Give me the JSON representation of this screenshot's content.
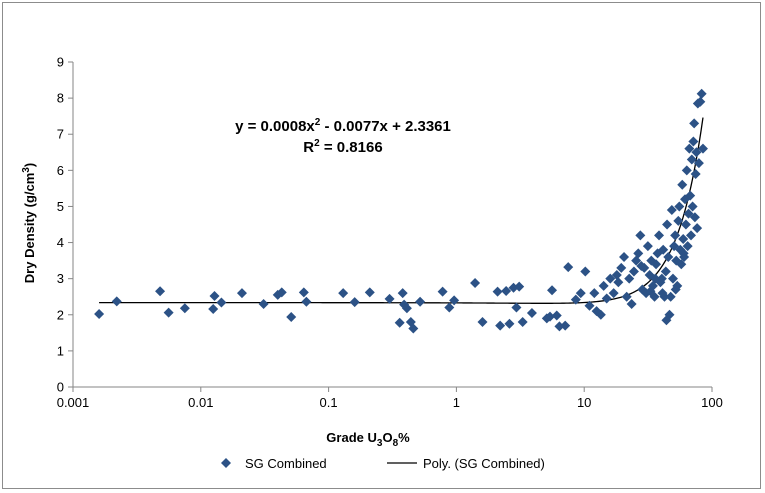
{
  "chart_data": {
    "type": "scatter",
    "title": "",
    "xlabel": "Grade U3O8%",
    "xlabel_parts": {
      "pre": "Grade U",
      "sub1": "3",
      "mid": "O",
      "sub2": "8",
      "post": "%"
    },
    "ylabel": "Dry Density (g/cm3)",
    "ylabel_parts": {
      "pre": "Dry Density (g/cm",
      "sup": "3",
      "post": ")"
    },
    "x_scale": "log",
    "xlim": [
      0.001,
      100
    ],
    "ylim": [
      0,
      9
    ],
    "x_ticks": [
      "0.001",
      "0.01",
      "0.1",
      "1",
      "10",
      "100"
    ],
    "y_ticks": [
      "0",
      "1",
      "2",
      "3",
      "4",
      "5",
      "6",
      "7",
      "8",
      "9"
    ],
    "grid": "none",
    "legend_position": "bottom",
    "marker_color": "#2c5286",
    "line_color": "#000000",
    "series": [
      {
        "name": "SG Combined",
        "points": [
          [
            0.0016,
            2.02
          ],
          [
            0.0022,
            2.37
          ],
          [
            0.0048,
            2.65
          ],
          [
            0.0056,
            2.06
          ],
          [
            0.0075,
            2.18
          ],
          [
            0.0125,
            2.16
          ],
          [
            0.0128,
            2.52
          ],
          [
            0.0145,
            2.34
          ],
          [
            0.021,
            2.6
          ],
          [
            0.031,
            2.3
          ],
          [
            0.04,
            2.55
          ],
          [
            0.043,
            2.62
          ],
          [
            0.051,
            1.94
          ],
          [
            0.064,
            2.62
          ],
          [
            0.067,
            2.36
          ],
          [
            0.13,
            2.6
          ],
          [
            0.16,
            2.35
          ],
          [
            0.21,
            2.62
          ],
          [
            0.3,
            2.44
          ],
          [
            0.36,
            1.78
          ],
          [
            0.38,
            2.6
          ],
          [
            0.39,
            2.28
          ],
          [
            0.41,
            2.18
          ],
          [
            0.44,
            1.8
          ],
          [
            0.46,
            1.62
          ],
          [
            0.52,
            2.36
          ],
          [
            0.78,
            2.64
          ],
          [
            0.88,
            2.2
          ],
          [
            0.96,
            2.4
          ],
          [
            1.4,
            2.88
          ],
          [
            1.6,
            1.8
          ],
          [
            2.1,
            2.64
          ],
          [
            2.2,
            1.7
          ],
          [
            2.45,
            2.66
          ],
          [
            2.6,
            1.75
          ],
          [
            2.8,
            2.75
          ],
          [
            2.95,
            2.2
          ],
          [
            3.1,
            2.78
          ],
          [
            3.3,
            1.8
          ],
          [
            3.9,
            2.05
          ],
          [
            5.1,
            1.9
          ],
          [
            5.4,
            1.95
          ],
          [
            5.6,
            2.68
          ],
          [
            6.1,
            1.98
          ],
          [
            6.4,
            1.68
          ],
          [
            7.1,
            1.7
          ],
          [
            7.5,
            3.32
          ],
          [
            8.6,
            2.42
          ],
          [
            9.4,
            2.6
          ],
          [
            10.2,
            3.2
          ],
          [
            11,
            2.25
          ],
          [
            12,
            2.6
          ],
          [
            12.5,
            2.1
          ],
          [
            13.5,
            2.0
          ],
          [
            14.2,
            2.8
          ],
          [
            15,
            2.45
          ],
          [
            16,
            3.0
          ],
          [
            17,
            2.6
          ],
          [
            18,
            3.1
          ],
          [
            18.5,
            2.9
          ],
          [
            19.5,
            3.3
          ],
          [
            20.5,
            3.6
          ],
          [
            21.5,
            2.5
          ],
          [
            22.5,
            3.0
          ],
          [
            23.5,
            2.3
          ],
          [
            24.5,
            3.2
          ],
          [
            25.5,
            3.5
          ],
          [
            26.5,
            3.7
          ],
          [
            27.5,
            4.2
          ],
          [
            28.5,
            2.7
          ],
          [
            29.5,
            3.3
          ],
          [
            30.5,
            2.6
          ],
          [
            31.5,
            3.9
          ],
          [
            32.5,
            3.1
          ],
          [
            33.5,
            3.5
          ],
          [
            34.5,
            2.8
          ],
          [
            35.5,
            2.5
          ],
          [
            36.5,
            3.4
          ],
          [
            37.5,
            3.7
          ],
          [
            38.5,
            4.2
          ],
          [
            39.5,
            2.9
          ],
          [
            40.5,
            3.0
          ],
          [
            41.5,
            3.8
          ],
          [
            42.5,
            2.5
          ],
          [
            43.5,
            3.2
          ],
          [
            44.5,
            4.5
          ],
          [
            45.5,
            3.6
          ],
          [
            46.5,
            2.0
          ],
          [
            47.5,
            2.5
          ],
          [
            48.5,
            4.9
          ],
          [
            49.5,
            3.0
          ],
          [
            50.5,
            3.9
          ],
          [
            51.5,
            4.2
          ],
          [
            52.5,
            3.5
          ],
          [
            53.5,
            2.8
          ],
          [
            54.5,
            4.6
          ],
          [
            55.5,
            5.0
          ],
          [
            56.5,
            3.8
          ],
          [
            57.5,
            3.4
          ],
          [
            58.5,
            5.6
          ],
          [
            59.5,
            4.1
          ],
          [
            60.5,
            3.6
          ],
          [
            61.5,
            5.2
          ],
          [
            62.5,
            4.5
          ],
          [
            63.5,
            6.0
          ],
          [
            64.5,
            3.9
          ],
          [
            65.5,
            4.8
          ],
          [
            66.5,
            6.6
          ],
          [
            67.5,
            5.3
          ],
          [
            68.5,
            4.2
          ],
          [
            69.5,
            6.3
          ],
          [
            70.5,
            5.0
          ],
          [
            71.5,
            6.8
          ],
          [
            72.5,
            7.3
          ],
          [
            73.5,
            4.7
          ],
          [
            74.5,
            5.9
          ],
          [
            75.5,
            6.5
          ],
          [
            76.5,
            4.4
          ],
          [
            77.5,
            7.85
          ],
          [
            79,
            6.2
          ],
          [
            81,
            7.9
          ],
          [
            83,
            8.12
          ],
          [
            85,
            6.6
          ],
          [
            44,
            1.85
          ],
          [
            41,
            2.6
          ],
          [
            36,
            3.0
          ],
          [
            33,
            2.65
          ],
          [
            28,
            3.35
          ],
          [
            52,
            2.7
          ],
          [
            60,
            3.7
          ]
        ]
      },
      {
        "name": "Poly. (SG Combined)",
        "type": "trendline",
        "coefficients": {
          "a": 0.0008,
          "b": -0.0077,
          "c": 2.3361
        }
      }
    ],
    "annotations": {
      "equation": "y = 0.0008x",
      "equation_sup": "2",
      "equation_rest": " - 0.0077x + 2.3361",
      "r_squared_pre": "R",
      "r_squared_sup": "2",
      "r_squared_rest": " = 0.8166"
    }
  }
}
